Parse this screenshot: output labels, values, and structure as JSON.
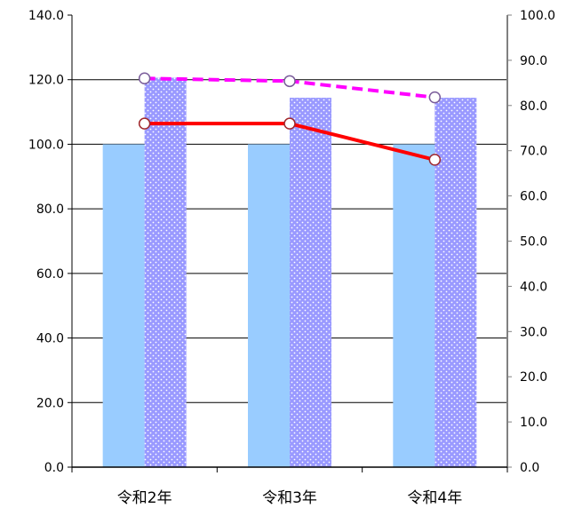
{
  "chart_data": {
    "type": "bar",
    "categories": [
      "令和2年",
      "令和3年",
      "令和4年"
    ],
    "left_axis": {
      "ylim": [
        0,
        140
      ],
      "ticks": [
        "0.0",
        "20.0",
        "40.0",
        "60.0",
        "80.0",
        "100.0",
        "120.0",
        "140.0"
      ]
    },
    "right_axis": {
      "ylim": [
        0,
        100
      ],
      "ticks": [
        "0.0",
        "10.0",
        "20.0",
        "30.0",
        "40.0",
        "50.0",
        "60.0",
        "70.0",
        "80.0",
        "90.0",
        "100.0"
      ]
    },
    "bar_series": [
      {
        "values": [
          100.0,
          100.0,
          100.0
        ],
        "color": "#99ccff",
        "pattern": "solid",
        "axis": "left"
      },
      {
        "values": [
          120.6,
          114.4,
          114.4
        ],
        "color": "#9999ff",
        "pattern": "dotted",
        "axis": "left"
      }
    ],
    "line_series": [
      {
        "values": [
          86.0,
          85.4,
          81.8
        ],
        "color": "#ff00ff",
        "style": "dashed",
        "axis": "right"
      },
      {
        "values": [
          76.0,
          76.0,
          68.0
        ],
        "color": "#ff0000",
        "style": "solid",
        "axis": "right"
      }
    ],
    "grid": true
  }
}
